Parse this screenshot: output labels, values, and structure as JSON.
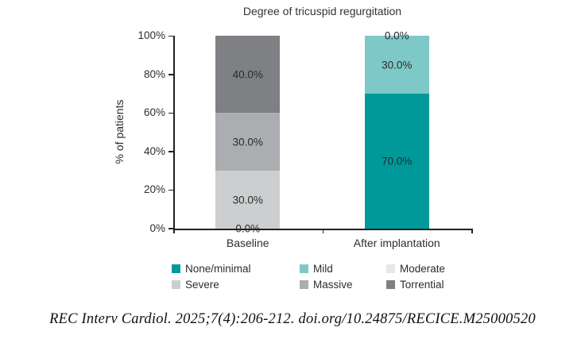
{
  "chart_data": {
    "type": "bar",
    "stacked": true,
    "title": "Degree of tricuspid regurgitation",
    "ylabel": "% of patients",
    "categories": [
      "Baseline",
      "After implantation"
    ],
    "series": [
      {
        "name": "None/minimal",
        "color": "#00999A",
        "values": [
          0,
          70
        ]
      },
      {
        "name": "Mild",
        "color": "#7EC9C7",
        "values": [
          0,
          30
        ]
      },
      {
        "name": "Moderate",
        "color": "#E6E7E8",
        "values": [
          0,
          0
        ]
      },
      {
        "name": "Severe",
        "color": "#CCCED0",
        "values": [
          30,
          0
        ]
      },
      {
        "name": "Massive",
        "color": "#ABADB0",
        "values": [
          30,
          0
        ]
      },
      {
        "name": "Torrential",
        "color": "#7E8083",
        "values": [
          40,
          0
        ]
      }
    ],
    "ylim": [
      0,
      100
    ],
    "yticks": [
      "0%",
      "20%",
      "40%",
      "60%",
      "80%",
      "100%"
    ],
    "data_labels_visible": {
      "Baseline": [
        "0.0%",
        "30.0%",
        "30.0%",
        "40.0%"
      ],
      "After implantation": [
        "70.0%",
        "30.0%",
        "0.0%"
      ]
    },
    "legend_position": "bottom",
    "grid": false
  },
  "colors": {
    "axis": "#231F20",
    "accent_teal": "#00999A"
  },
  "citation": "REC Interv Cardiol. 2025;7(4):206-212. doi.org/10.24875/RECICE.M25000520"
}
